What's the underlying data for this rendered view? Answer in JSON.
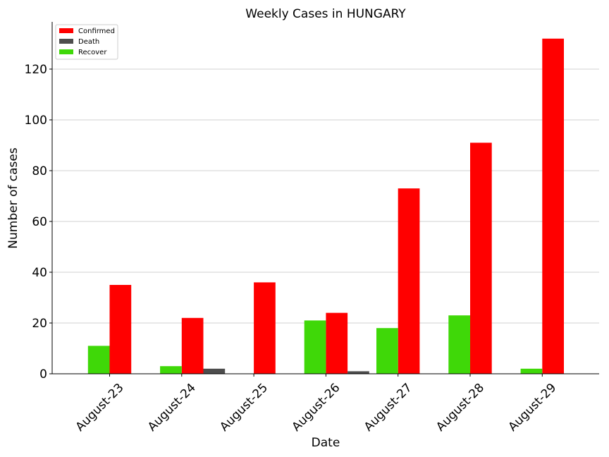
{
  "chart_data": {
    "type": "bar",
    "title": "Weekly Cases in HUNGARY",
    "xlabel": "Date",
    "ylabel": "Number of cases",
    "categories": [
      "August-23",
      "August-24",
      "August-25",
      "August-26",
      "August-27",
      "August-28",
      "August-29"
    ],
    "series": [
      {
        "name": "Confirmed",
        "color": "#ff0000",
        "values": [
          35,
          22,
          36,
          24,
          73,
          91,
          132
        ]
      },
      {
        "name": "Death",
        "color": "#4d4d4d",
        "values": [
          0,
          2,
          0,
          1,
          0,
          0,
          0
        ]
      },
      {
        "name": "Recover",
        "color": "#3fd808",
        "values": [
          11,
          3,
          0,
          21,
          18,
          23,
          2
        ]
      }
    ],
    "ylim": [
      0,
      138.6
    ],
    "yticks": [
      0,
      20,
      40,
      60,
      80,
      100,
      120
    ],
    "grid": "horizontal",
    "legend_position": "top-left"
  }
}
